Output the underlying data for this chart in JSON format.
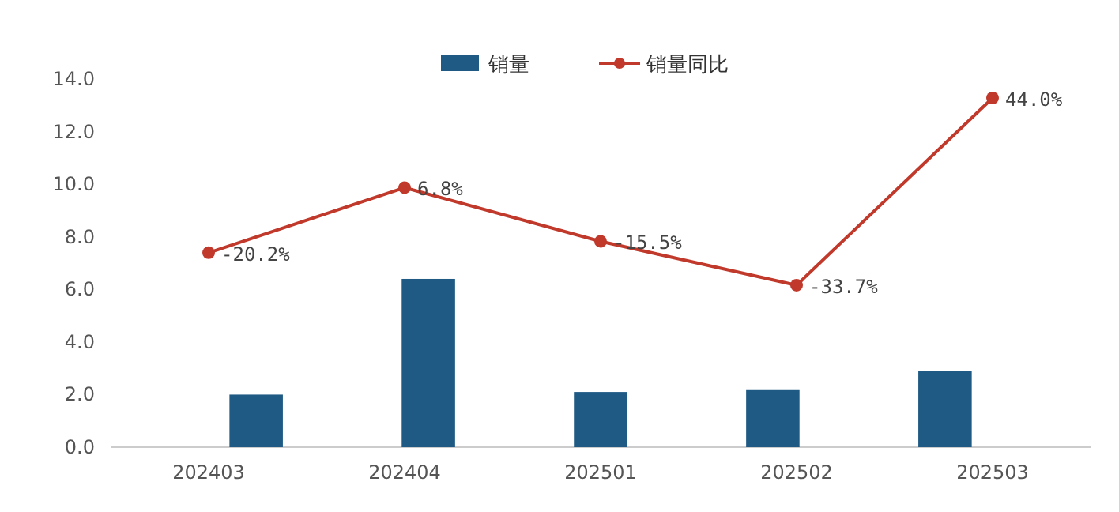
{
  "chart_data": {
    "type": "bar",
    "categories": [
      "202403",
      "202404",
      "202501",
      "202502",
      "202503"
    ],
    "series": [
      {
        "name": "销量",
        "color": "#1f5a85",
        "values": [
          2.0,
          6.4,
          2.1,
          2.2,
          2.9
        ]
      },
      {
        "name": "销量同比",
        "type": "line",
        "axis": "y2",
        "color": "#c0392b",
        "values": [
          -20.2,
          6.8,
          -15.5,
          -33.7,
          44.0
        ],
        "value_labels": [
          "-20.2%",
          "6.8%",
          "-15.5%",
          "-33.7%",
          "44.0%"
        ]
      }
    ],
    "ylim": [
      0,
      14
    ],
    "yticks": [
      {
        "value": 0,
        "label": "0.0"
      },
      {
        "value": 2,
        "label": "2.0"
      },
      {
        "value": 4,
        "label": "4.0"
      },
      {
        "value": 6,
        "label": "6.0"
      },
      {
        "value": 8,
        "label": "8.0"
      },
      {
        "value": 10,
        "label": "10.0"
      },
      {
        "value": 12,
        "label": "12.0"
      },
      {
        "value": 14,
        "label": "14.0"
      }
    ],
    "marker": "circle",
    "legend": "top",
    "grid": false
  }
}
